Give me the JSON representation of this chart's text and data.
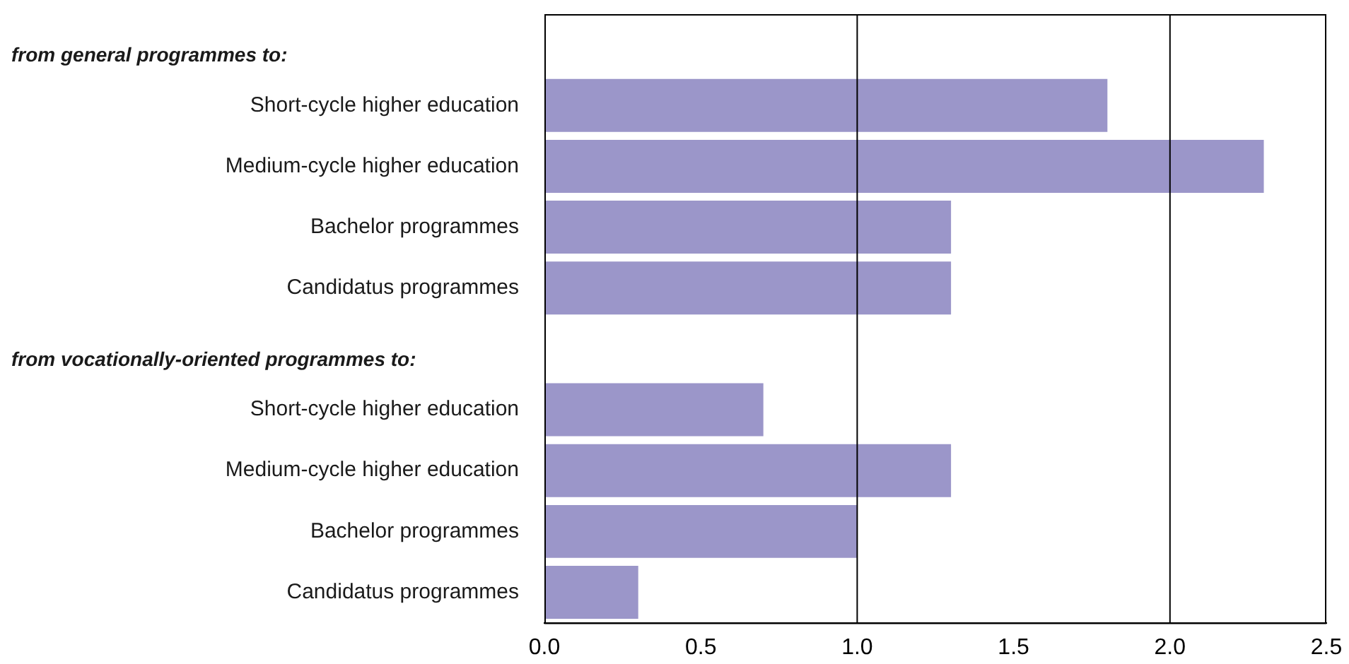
{
  "chart_data": {
    "type": "bar",
    "orientation": "horizontal",
    "annotations": [
      "from general programmes to:",
      "from vocationally-oriented programmes to:"
    ],
    "categories": [
      null,
      "Short-cycle higher education",
      "Medium-cycle higher education",
      "Bachelor programmes",
      "Candidatus programmes",
      null,
      "Short-cycle higher education",
      "Medium-cycle higher education",
      "Bachelor programmes",
      "Candidatus programmes"
    ],
    "values": [
      null,
      1.8,
      2.3,
      1.3,
      1.3,
      null,
      0.7,
      1.3,
      1.0,
      0.3
    ],
    "color": "#9b96c9",
    "xlim": [
      0,
      2.5
    ],
    "xticks": [
      {
        "value": 0,
        "label": "0.0"
      },
      {
        "value": 0.5,
        "label": "0.5"
      },
      {
        "value": 1,
        "label": "1.0"
      },
      {
        "value": 1.5,
        "label": "1.5"
      },
      {
        "value": 2,
        "label": "2.0"
      },
      {
        "value": 2.5,
        "label": "2.5"
      }
    ],
    "grid": false,
    "ref_lines": [
      {
        "axis": "x",
        "value": 1,
        "color": "#000000"
      },
      {
        "axis": "x",
        "value": 2,
        "color": "#000000"
      }
    ]
  }
}
